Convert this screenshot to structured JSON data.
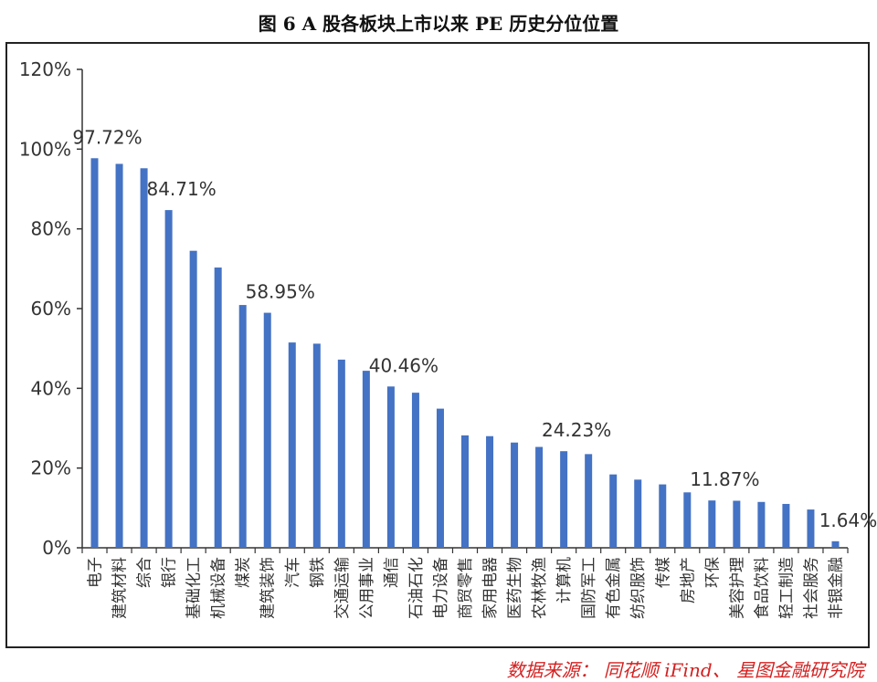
{
  "figure": {
    "title": "图 6 A 股各板块上市以来 PE 历史分位位置",
    "source": "数据来源： 同花顺 iFind、 星图金融研究院"
  },
  "colors": {
    "bar": "#4472C4",
    "axis": "#333333",
    "text": "#333333"
  },
  "chart_data": {
    "type": "bar",
    "title": "",
    "xlabel": "",
    "ylabel": "",
    "ylim": [
      0,
      120
    ],
    "yticks": [
      "0%",
      "20%",
      "40%",
      "60%",
      "80%",
      "100%",
      "120%"
    ],
    "grid": false,
    "legend": "none",
    "categories": [
      "电子",
      "建筑材料",
      "综合",
      "银行",
      "基础化工",
      "机械设备",
      "煤炭",
      "建筑装饰",
      "汽车",
      "钢铁",
      "交通运输",
      "公用事业",
      "通信",
      "石油石化",
      "电力设备",
      "商贸零售",
      "家用电器",
      "医药生物",
      "农林牧渔",
      "计算机",
      "国防军工",
      "有色金属",
      "纺织服饰",
      "传媒",
      "房地产",
      "环保",
      "美容护理",
      "食品饮料",
      "轻工制造",
      "社会服务",
      "非银金融"
    ],
    "values": [
      97.72,
      96.3,
      95.2,
      84.71,
      74.5,
      70.3,
      60.9,
      58.95,
      51.5,
      51.2,
      47.2,
      44.4,
      40.46,
      38.9,
      34.9,
      28.2,
      28.0,
      26.4,
      25.3,
      24.23,
      23.5,
      18.4,
      17.1,
      15.9,
      13.9,
      11.87,
      11.8,
      11.5,
      11.0,
      9.6,
      1.64
    ],
    "data_labels": [
      {
        "index": 0,
        "text": "97.72%"
      },
      {
        "index": 3,
        "text": "84.71%"
      },
      {
        "index": 7,
        "text": "58.95%"
      },
      {
        "index": 12,
        "text": "40.46%"
      },
      {
        "index": 19,
        "text": "24.23%"
      },
      {
        "index": 25,
        "text": "11.87%"
      },
      {
        "index": 30,
        "text": "1.64%"
      }
    ]
  }
}
